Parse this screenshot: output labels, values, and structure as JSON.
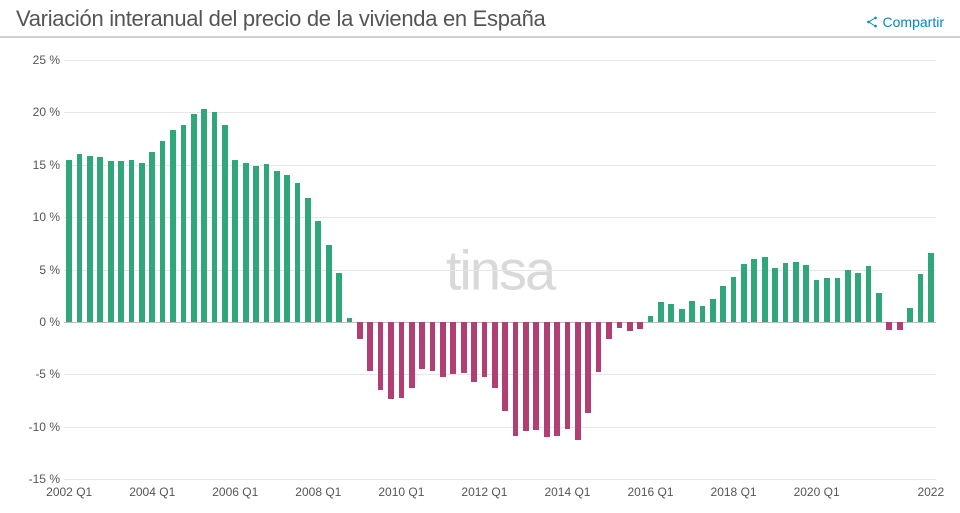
{
  "header": {
    "title": "Variación interanual del precio de la vivienda en España",
    "share_label": "Compartir"
  },
  "chart": {
    "type": "bar",
    "watermark": "tinsa",
    "colors": {
      "positive": "#2fa77a",
      "negative": "#b23f74",
      "grid": "#e6e6e6",
      "zero": "#bdbdbd",
      "background": "#ffffff",
      "text": "#555555"
    },
    "fontsize": {
      "title": 22,
      "tick": 12
    },
    "ylim": [
      -15,
      25
    ],
    "ytick_step": 5,
    "y_tick_labels": [
      "-15 %",
      "-10 %",
      "-5 %",
      "0 %",
      "5 %",
      "10 %",
      "15 %",
      "20 %",
      "25 %"
    ],
    "xtick_every_quarters": 8,
    "bar_width_ratio": 0.55,
    "start": {
      "year": 2002,
      "quarter": 1
    },
    "x_tick_labels": [
      "2002 Q1",
      "2004 Q1",
      "2006 Q1",
      "2008 Q1",
      "2010 Q1",
      "2012 Q1",
      "2014 Q1",
      "2016 Q1",
      "2018 Q1",
      "2020 Q1",
      "2022"
    ],
    "values": [
      15.5,
      16.0,
      15.8,
      15.7,
      15.4,
      15.4,
      15.5,
      15.2,
      16.2,
      17.3,
      18.3,
      18.8,
      19.8,
      20.3,
      20.0,
      18.8,
      15.5,
      15.2,
      14.9,
      15.1,
      14.4,
      14.0,
      13.3,
      11.8,
      9.6,
      7.3,
      4.7,
      0.4,
      -1.6,
      -4.7,
      -6.5,
      -7.4,
      -7.3,
      -6.3,
      -4.5,
      -4.7,
      -5.3,
      -5.0,
      -4.9,
      -5.7,
      -5.3,
      -6.3,
      -8.5,
      -10.9,
      -10.4,
      -10.3,
      -11.0,
      -10.9,
      -10.2,
      -11.3,
      -8.7,
      -4.8,
      -1.6,
      -0.6,
      -0.9,
      -0.7,
      0.6,
      1.9,
      1.7,
      1.2,
      2.0,
      1.5,
      2.2,
      3.4,
      4.3,
      5.5,
      6.0,
      6.2,
      5.1,
      5.6,
      5.7,
      5.4,
      4.0,
      4.2,
      4.2,
      5.0,
      4.7,
      5.3,
      2.8,
      -0.8,
      -0.8,
      1.3,
      4.6,
      6.6
    ]
  }
}
